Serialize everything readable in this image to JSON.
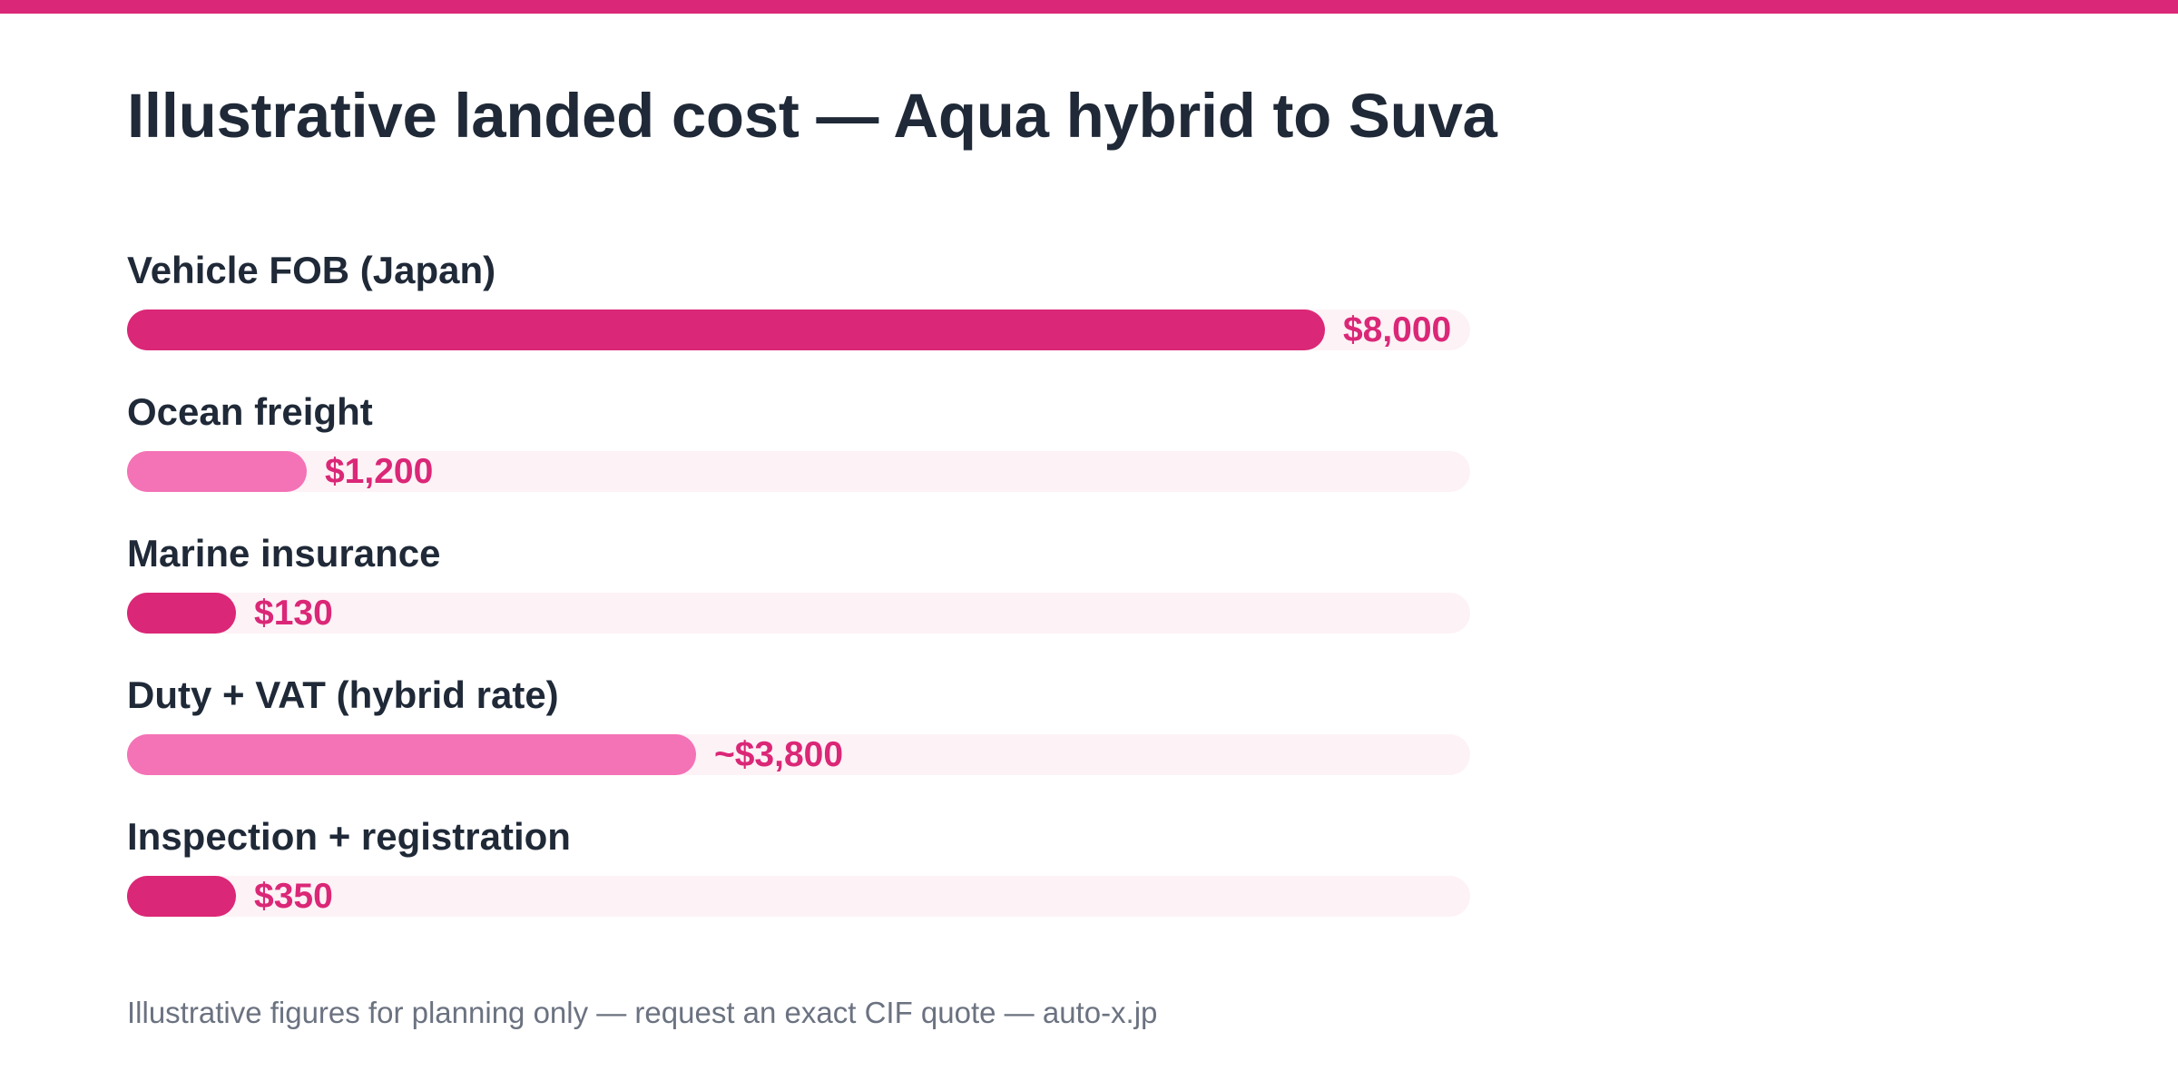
{
  "title": "Illustrative landed cost — Aqua hybrid to Suva",
  "footnote": "Illustrative figures for planning only — request an exact CIF quote — auto-x.jp",
  "colors": {
    "accent": "#db2777",
    "accent_light": "#f472b6",
    "track": "#fdf2f6",
    "text": "#1f2937",
    "muted": "#6b7280"
  },
  "chart_data": {
    "type": "bar",
    "orientation": "horizontal",
    "title": "Illustrative landed cost — Aqua hybrid to Suva",
    "xlim": [
      0,
      8970
    ],
    "grid": false,
    "categories": [
      "Vehicle FOB (Japan)",
      "Ocean freight",
      "Marine insurance",
      "Duty + VAT (hybrid rate)",
      "Inspection + registration"
    ],
    "values": [
      8000,
      1200,
      130,
      3800,
      350
    ],
    "value_labels": [
      "$8,000",
      "$1,200",
      "$130",
      "~$3,800",
      "$350"
    ],
    "bar_colors": [
      "#db2777",
      "#f472b6",
      "#db2777",
      "#f472b6",
      "#db2777"
    ]
  }
}
